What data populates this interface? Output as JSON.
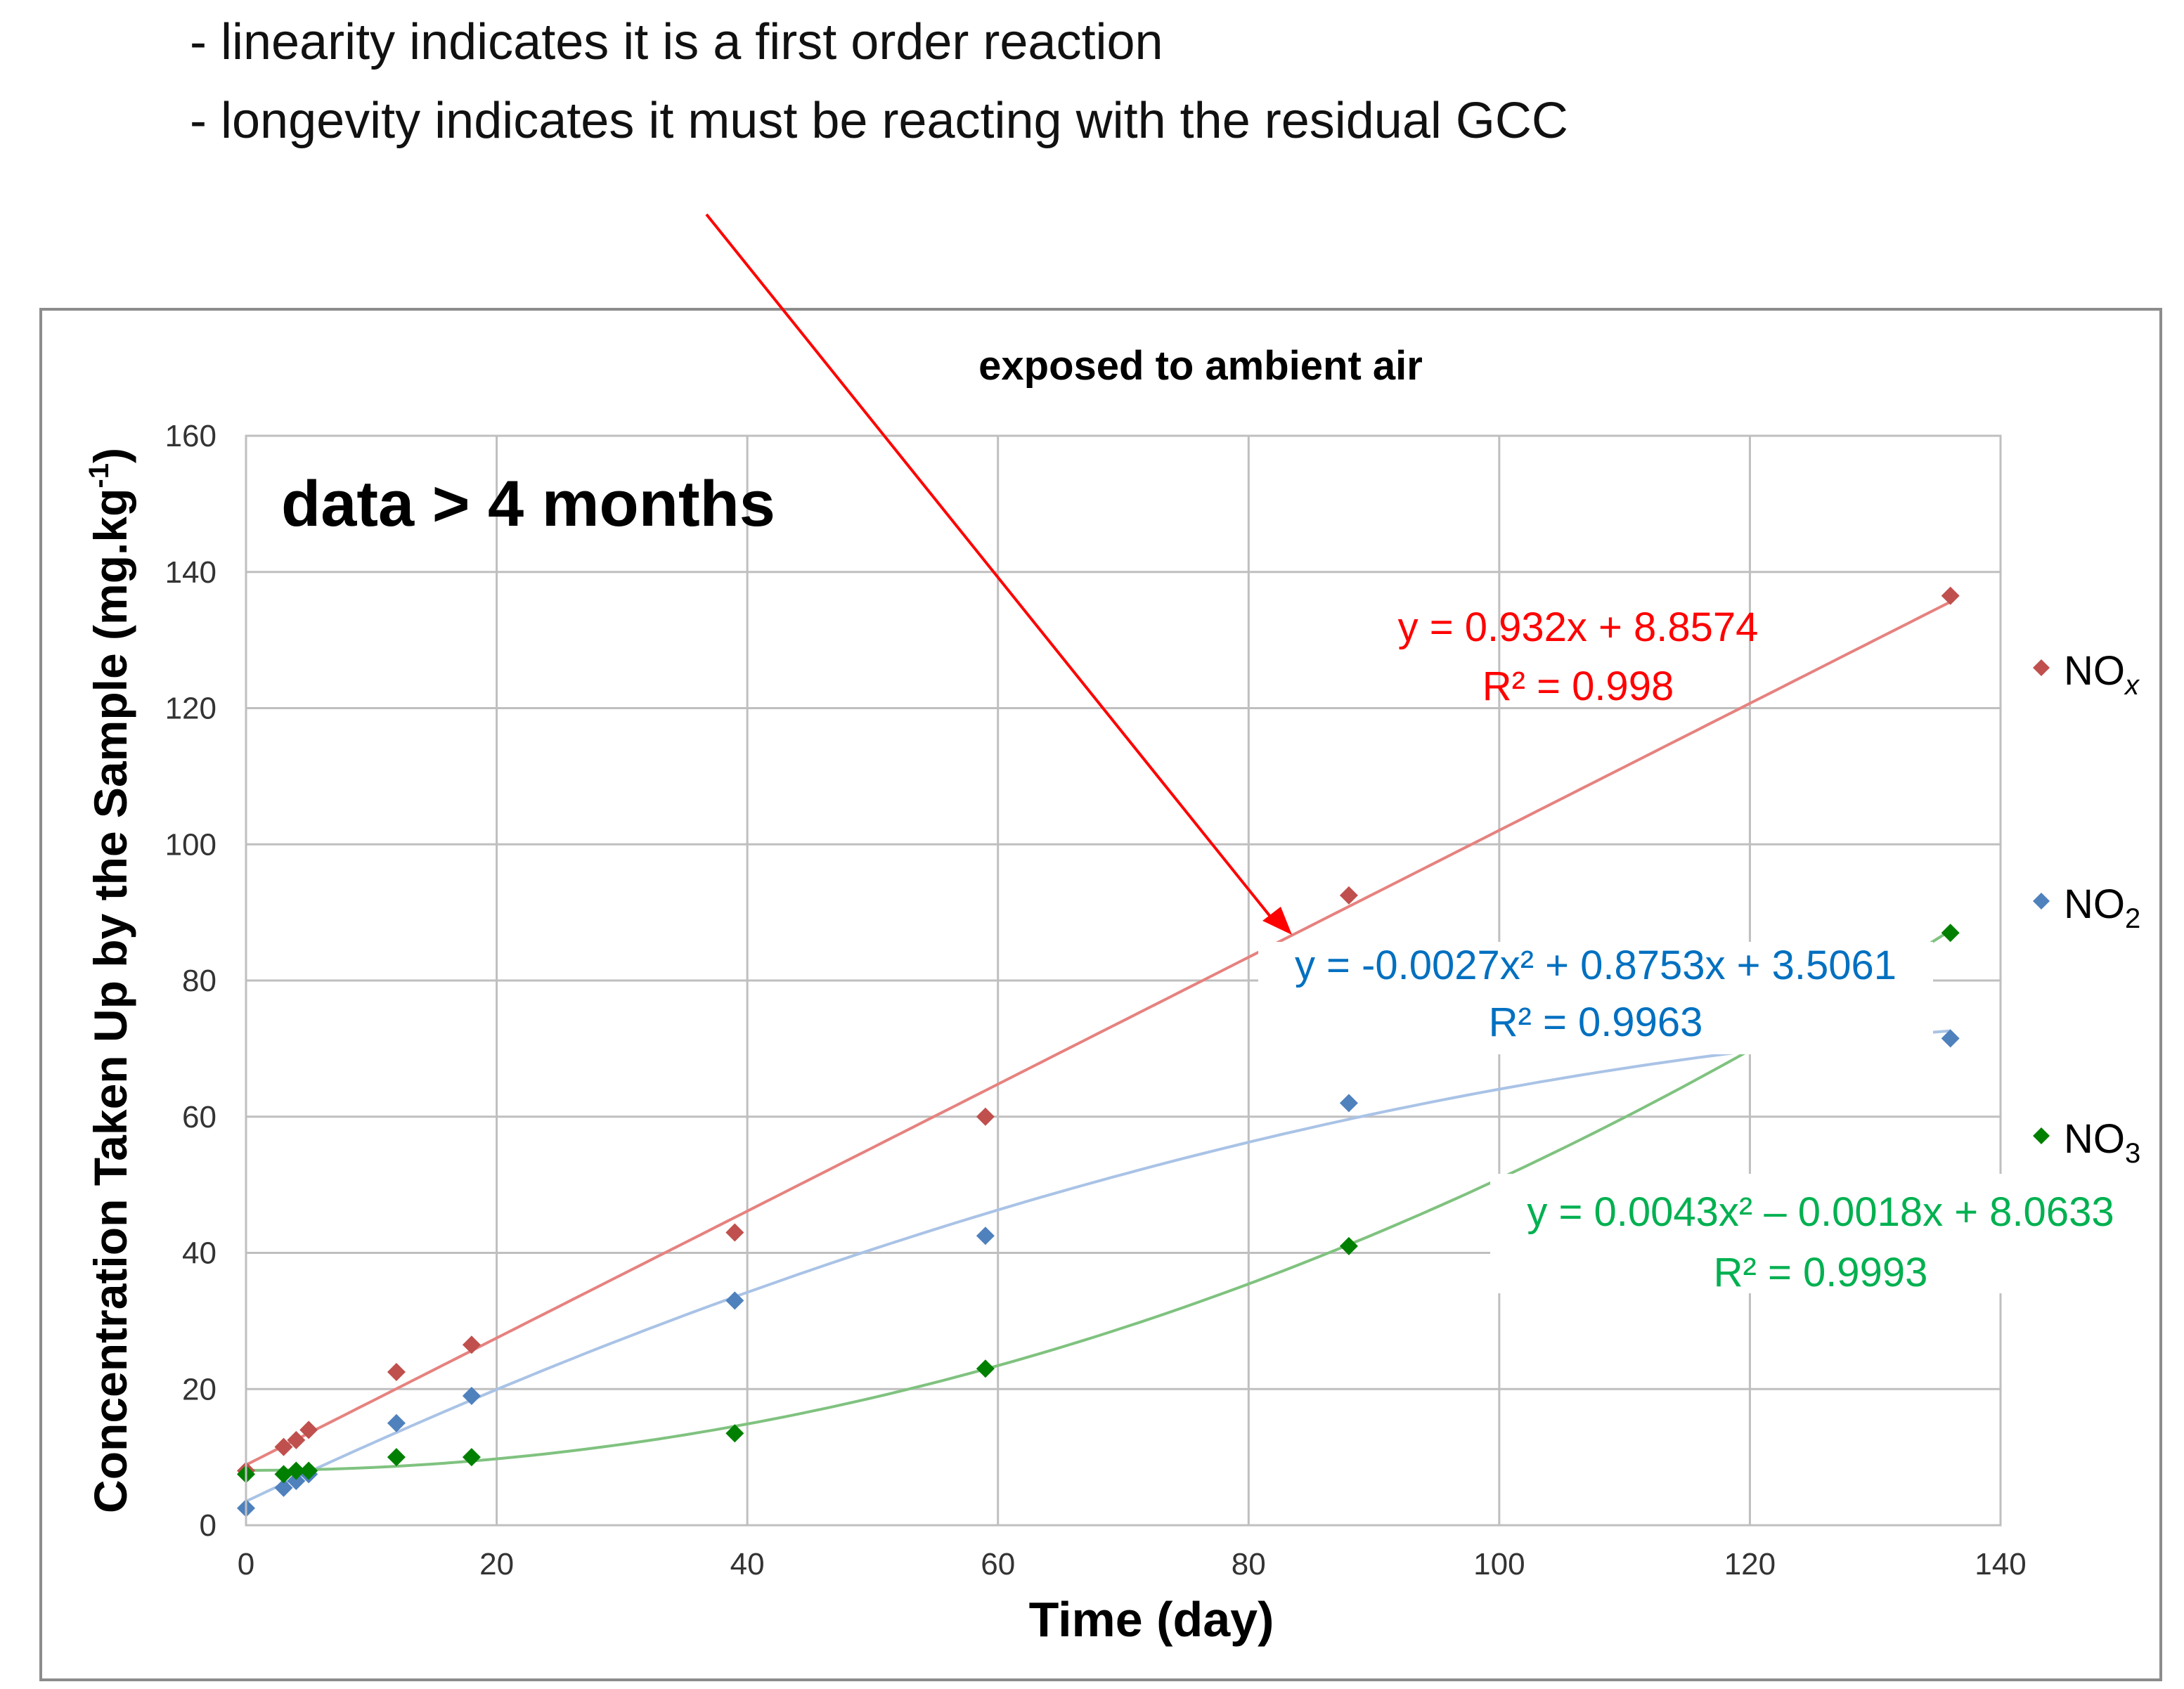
{
  "notes": [
    "- linearity indicates it is a first order reaction",
    "- longevity indicates it must be reacting with the residual GCC"
  ],
  "colors": {
    "nox_marker": "#c0504d",
    "no2_marker": "#4f81bd",
    "no3_marker": "#008000",
    "nox_fit": "#e6827f",
    "no2_fit": "#a9c3e6",
    "no3_fit": "#7fc27f",
    "nox_text": "#ff0000",
    "no2_text": "#0070c0",
    "no3_text": "#00b050",
    "arrow": "#ff0000",
    "grid": "#bfbfbf",
    "frame": "#8c8c8c"
  },
  "chart_data": {
    "type": "scatter",
    "title": "exposed to ambient air",
    "annotation": "data > 4 months",
    "xlabel": "Time (day)",
    "ylabel": "Concentration Taken Up by the Sample (mg.kg",
    "ylabel_sup": "-1",
    "ylabel_tail": ")",
    "xlim": [
      0,
      140
    ],
    "ylim": [
      0,
      160
    ],
    "xticks": [
      0,
      20,
      40,
      60,
      80,
      100,
      120,
      140
    ],
    "yticks": [
      0,
      20,
      40,
      60,
      80,
      100,
      120,
      140,
      160
    ],
    "grid": true,
    "legend_position": "right",
    "series": [
      {
        "name": "NOx",
        "legend_base": "NO",
        "legend_sub": "x",
        "x": [
          0,
          3,
          4,
          5,
          12,
          18,
          39,
          59,
          88,
          136
        ],
        "y": [
          8,
          11.5,
          12.5,
          14,
          22.5,
          26.5,
          43,
          60,
          92.5,
          136.5
        ],
        "fit": {
          "type": "linear",
          "coef": [
            0.932,
            8.8574
          ],
          "r2": 0.998
        },
        "equation": "y = 0.932x + 8.8574",
        "r2_label": "R² = 0.998"
      },
      {
        "name": "NO2",
        "legend_base": "NO",
        "legend_sub": "2",
        "x": [
          0,
          3,
          4,
          5,
          12,
          18,
          39,
          59,
          88,
          136
        ],
        "y": [
          2.5,
          5.5,
          6.5,
          7.5,
          15,
          19,
          33,
          42.5,
          62,
          71.5
        ],
        "fit": {
          "type": "poly2",
          "coef": [
            -0.0027,
            0.8753,
            3.5061
          ],
          "r2": 0.9963
        },
        "equation": "y = -0.0027x² + 0.8753x + 3.5061",
        "r2_label": "R² = 0.9963"
      },
      {
        "name": "NO3",
        "legend_base": "NO",
        "legend_sub": "3",
        "x": [
          0,
          3,
          4,
          5,
          12,
          18,
          39,
          59,
          88,
          136
        ],
        "y": [
          7.5,
          7.5,
          8,
          8,
          10,
          10,
          13.5,
          23,
          41,
          87
        ],
        "fit": {
          "type": "poly2",
          "coef": [
            0.0043,
            -0.0018,
            8.0633
          ],
          "r2": 0.9993
        },
        "equation": "y = 0.0043x² – 0.0018x + 8.0633",
        "r2_label": "R² = 0.9993"
      }
    ]
  }
}
